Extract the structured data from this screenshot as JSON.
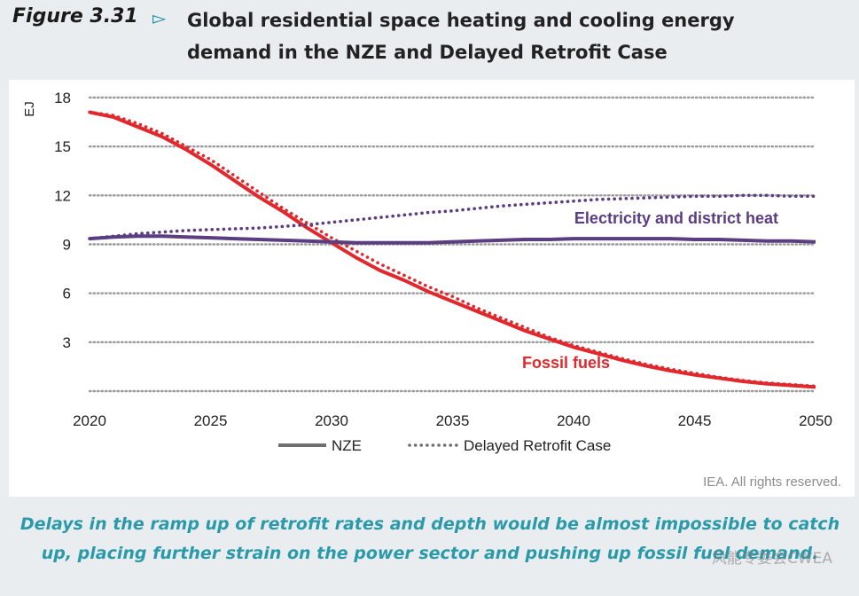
{
  "header": {
    "figure_label": "Figure 3.31",
    "arrow_icon": "triangle-right-icon",
    "title": "Global residential space heating and cooling energy demand in the NZE and Delayed Retrofit Case"
  },
  "credit": "IEA. All rights reserved.",
  "takeaway": "Delays in the ramp up of retrofit rates and depth would be almost impossible to catch up, placing further strain on the power sector and pushing up fossil fuel demand.",
  "watermark": "风能专委会CWEA",
  "colors": {
    "fossil": "#e0282d",
    "electricity": "#5b3d82",
    "grid": "#9a9a9a",
    "axis_text": "#222222",
    "teal": "#2a9aaa"
  },
  "chart_data": {
    "type": "line",
    "title": "",
    "xlabel": "",
    "ylabel": "EJ",
    "xlim": [
      2020,
      2050
    ],
    "ylim": [
      0,
      18
    ],
    "x_ticks": [
      2020,
      2025,
      2030,
      2035,
      2040,
      2045,
      2050
    ],
    "y_ticks": [
      3,
      6,
      9,
      12,
      15,
      18
    ],
    "grid": "horizontal dotted",
    "legend": {
      "position": "bottom-center",
      "entries": [
        {
          "label": "NZE",
          "style": "solid"
        },
        {
          "label": "Delayed Retrofit Case",
          "style": "dotted"
        }
      ]
    },
    "annotations": [
      {
        "text": "Electricity and district heat",
        "series": "electricity"
      },
      {
        "text": "Fossil fuels",
        "series": "fossil"
      }
    ],
    "x": [
      2020,
      2021,
      2022,
      2023,
      2024,
      2025,
      2026,
      2027,
      2028,
      2029,
      2030,
      2031,
      2032,
      2033,
      2034,
      2035,
      2036,
      2037,
      2038,
      2039,
      2040,
      2041,
      2042,
      2043,
      2044,
      2045,
      2046,
      2047,
      2048,
      2049,
      2050
    ],
    "series": [
      {
        "name": "Fossil fuels - NZE",
        "group": "fossil",
        "style": "solid",
        "values": [
          17.1,
          16.8,
          16.2,
          15.6,
          14.8,
          13.9,
          12.9,
          11.9,
          11.0,
          10.0,
          9.1,
          8.2,
          7.4,
          6.8,
          6.1,
          5.5,
          4.9,
          4.3,
          3.7,
          3.2,
          2.7,
          2.3,
          1.9,
          1.55,
          1.25,
          1.0,
          0.8,
          0.6,
          0.45,
          0.35,
          0.25
        ]
      },
      {
        "name": "Fossil fuels - Delayed Retrofit Case",
        "group": "fossil",
        "style": "dotted",
        "values": [
          17.1,
          16.9,
          16.4,
          15.8,
          15.0,
          14.2,
          13.2,
          12.2,
          11.2,
          10.3,
          9.4,
          8.6,
          7.8,
          7.1,
          6.4,
          5.8,
          5.1,
          4.5,
          3.9,
          3.3,
          2.8,
          2.4,
          2.0,
          1.65,
          1.35,
          1.1,
          0.85,
          0.65,
          0.5,
          0.4,
          0.3
        ]
      },
      {
        "name": "Electricity and district heat - NZE",
        "group": "electricity",
        "style": "solid",
        "values": [
          9.35,
          9.45,
          9.5,
          9.5,
          9.45,
          9.4,
          9.35,
          9.3,
          9.25,
          9.2,
          9.15,
          9.1,
          9.1,
          9.1,
          9.1,
          9.15,
          9.2,
          9.25,
          9.3,
          9.3,
          9.35,
          9.35,
          9.35,
          9.35,
          9.35,
          9.3,
          9.3,
          9.25,
          9.2,
          9.2,
          9.15
        ]
      },
      {
        "name": "Electricity and district heat - Delayed Retrofit Case",
        "group": "electricity",
        "style": "dotted",
        "values": [
          9.35,
          9.5,
          9.65,
          9.75,
          9.85,
          9.9,
          9.95,
          10.0,
          10.1,
          10.2,
          10.35,
          10.5,
          10.65,
          10.8,
          10.95,
          11.05,
          11.2,
          11.35,
          11.45,
          11.55,
          11.65,
          11.75,
          11.8,
          11.85,
          11.9,
          11.95,
          11.95,
          12.0,
          12.0,
          11.95,
          11.95
        ]
      }
    ]
  }
}
